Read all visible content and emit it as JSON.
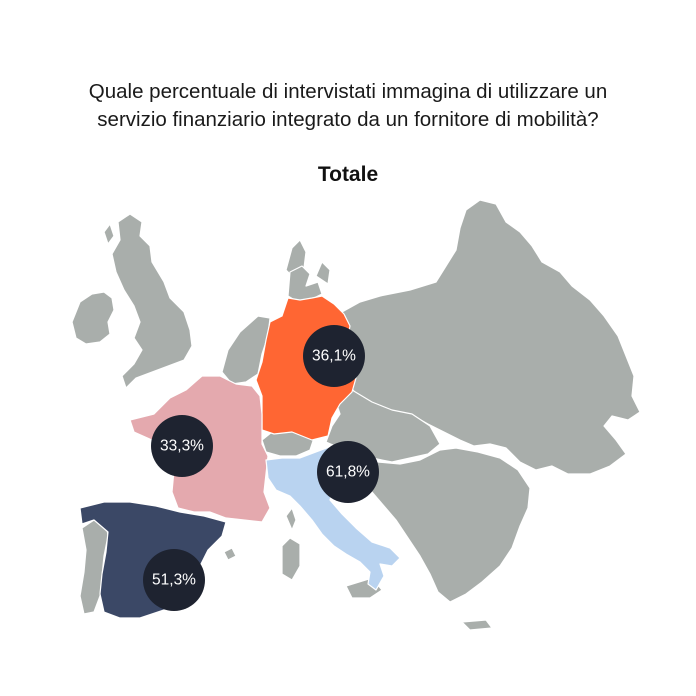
{
  "question": {
    "line1": "Quale percentuale di intervistati immagina di utilizzare un",
    "line2": "servizio finanziario integrato da un fornitore di mobilità?"
  },
  "subtitle": "Totale",
  "colors": {
    "other_countries": "#a9aeab",
    "bubble": "#1e2330",
    "germany": "#ff6633",
    "france": "#e4a9ae",
    "spain": "#3b4866",
    "italy": "#b9d3f0"
  },
  "countries": [
    {
      "name": "Germany",
      "value": "36,1%"
    },
    {
      "name": "France",
      "value": "33,3%"
    },
    {
      "name": "Italy",
      "value": "61,8%"
    },
    {
      "name": "Spain",
      "value": "51,3%"
    }
  ]
}
